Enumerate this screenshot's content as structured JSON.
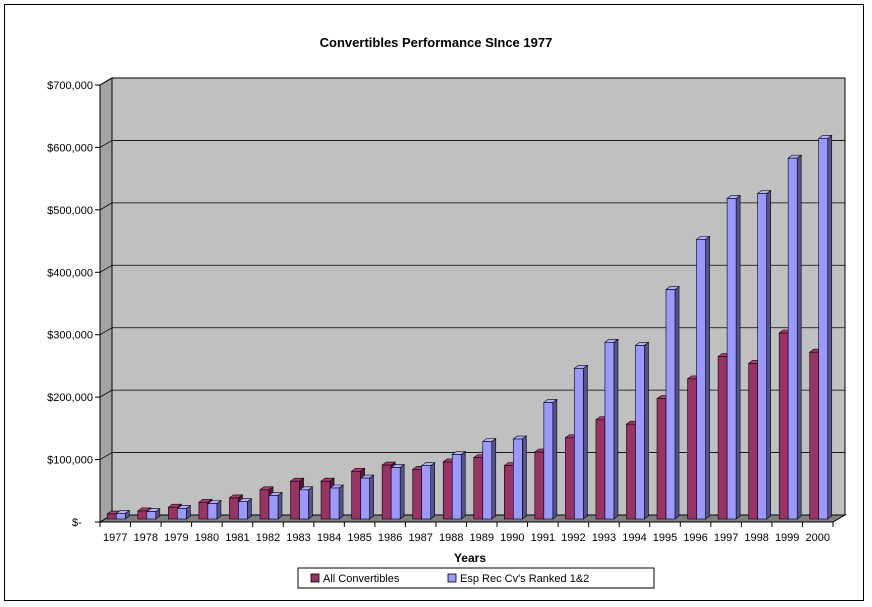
{
  "chart_data": {
    "type": "bar",
    "title": "Convertibles Performance SInce 1977",
    "xlabel": "Years",
    "ylabel": "",
    "ylim": [
      0,
      700000
    ],
    "y_ticks": [
      "$-",
      "$100,000",
      "$200,000",
      "$300,000",
      "$400,000",
      "$500,000",
      "$600,000",
      "$700,000"
    ],
    "grid": true,
    "legend_position": "bottom",
    "categories": [
      "1977",
      "1978",
      "1979",
      "1980",
      "1981",
      "1982",
      "1983",
      "1984",
      "1985",
      "1986",
      "1987",
      "1988",
      "1989",
      "1990",
      "1991",
      "1992",
      "1993",
      "1994",
      "1995",
      "1996",
      "1997",
      "1998",
      "1999",
      "2000"
    ],
    "series": [
      {
        "name": "All Convertibles",
        "color": "#993366",
        "values": [
          8000,
          13000,
          19000,
          27000,
          34000,
          47000,
          61000,
          61000,
          77000,
          87000,
          80000,
          92000,
          99000,
          86000,
          108000,
          131000,
          160000,
          153000,
          194000,
          226000,
          262000,
          251000,
          300000,
          269000
        ]
      },
      {
        "name": "Esp Rec Cv's Ranked 1&2",
        "color": "#9999ff",
        "values": [
          9000,
          12000,
          17000,
          25000,
          28000,
          38000,
          47000,
          50000,
          66000,
          83000,
          86000,
          104000,
          125000,
          129000,
          188000,
          243000,
          285000,
          280000,
          370000,
          451000,
          517000,
          525000,
          582000,
          614000
        ]
      }
    ]
  },
  "colors": {
    "plot_background": "#c0c0c0",
    "gridline": "#000000",
    "floor": "#808080"
  }
}
